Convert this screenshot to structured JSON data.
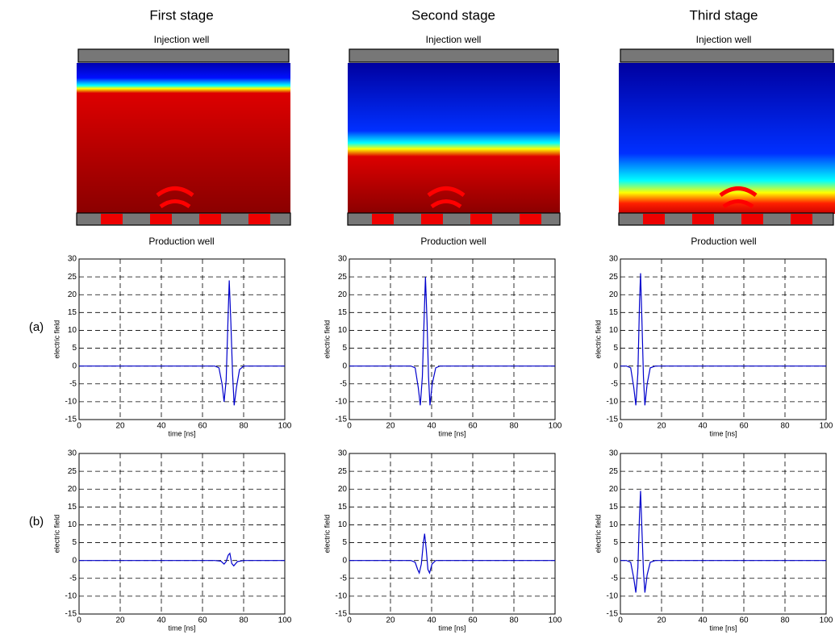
{
  "stages": [
    {
      "title": "First stage",
      "top_label": "Injection well",
      "bottom_label": "Production well"
    },
    {
      "title": "Second stage",
      "top_label": "Injection well",
      "bottom_label": "Production well"
    },
    {
      "title": "Third stage",
      "top_label": "Injection well",
      "bottom_label": "Production well"
    }
  ],
  "rows": [
    "(a)",
    "(b)"
  ],
  "chart_data": [
    {
      "type": "line",
      "xlabel": "time [ns]",
      "ylabel": "electric field",
      "color": "#0000cc",
      "grid": true,
      "xlim": [
        0,
        100
      ],
      "xticks": [
        0,
        20,
        40,
        60,
        80,
        100
      ],
      "ylim": [
        -15,
        30
      ],
      "yticks": [
        -15,
        -10,
        -5,
        0,
        5,
        10,
        15,
        20,
        25,
        30
      ],
      "x": [
        0,
        66,
        68,
        69.5,
        70.5,
        71.5,
        72.5,
        73,
        73.8,
        74.6,
        75.4,
        76.5,
        78,
        80,
        100
      ],
      "values": [
        0,
        0,
        -0.5,
        -5,
        -10,
        -4,
        15,
        24,
        12,
        -2,
        -11,
        -6,
        -1,
        0,
        0
      ]
    },
    {
      "type": "line",
      "xlabel": "time [ns]",
      "ylabel": "electric field",
      "color": "#0000cc",
      "grid": true,
      "xlim": [
        0,
        100
      ],
      "xticks": [
        0,
        20,
        40,
        60,
        80,
        100
      ],
      "ylim": [
        -15,
        30
      ],
      "yticks": [
        -15,
        -10,
        -5,
        0,
        5,
        10,
        15,
        20,
        25,
        30
      ],
      "x": [
        0,
        30,
        32,
        33.5,
        34.5,
        35.5,
        36.5,
        37,
        37.8,
        38.5,
        39.2,
        40.3,
        42,
        44,
        100
      ],
      "values": [
        0,
        0,
        -0.5,
        -6,
        -11,
        -3,
        16,
        25,
        12,
        -3,
        -11,
        -5,
        -0.5,
        0,
        0
      ]
    },
    {
      "type": "line",
      "xlabel": "time [ns]",
      "ylabel": "electric field",
      "color": "#0000cc",
      "grid": true,
      "xlim": [
        0,
        100
      ],
      "xticks": [
        0,
        20,
        40,
        60,
        80,
        100
      ],
      "ylim": [
        -15,
        30
      ],
      "yticks": [
        -15,
        -10,
        -5,
        0,
        5,
        10,
        15,
        20,
        25,
        30
      ],
      "x": [
        0,
        3,
        5,
        6.5,
        7.5,
        8.5,
        9.3,
        9.8,
        10.5,
        11.2,
        11.9,
        13,
        14.5,
        17,
        100
      ],
      "values": [
        0,
        0,
        -0.5,
        -6,
        -11,
        -2,
        18,
        26,
        12,
        -3,
        -11,
        -5,
        -0.5,
        0,
        0
      ]
    },
    {
      "type": "line",
      "xlabel": "time [ns]",
      "ylabel": "electric field",
      "color": "#0000cc",
      "grid": true,
      "xlim": [
        0,
        100
      ],
      "xticks": [
        0,
        20,
        40,
        60,
        80,
        100
      ],
      "ylim": [
        -15,
        30
      ],
      "yticks": [
        -15,
        -10,
        -5,
        0,
        5,
        10,
        15,
        20,
        25,
        30
      ],
      "x": [
        0,
        66,
        69,
        70.5,
        71.5,
        72.5,
        73.3,
        74.2,
        75.2,
        77,
        80,
        100
      ],
      "values": [
        0,
        0,
        -0.2,
        -1,
        -0.3,
        1.5,
        2,
        -0.8,
        -1.5,
        -0.3,
        0,
        0
      ]
    },
    {
      "type": "line",
      "xlabel": "time [ns]",
      "ylabel": "electric field",
      "color": "#0000cc",
      "grid": true,
      "xlim": [
        0,
        100
      ],
      "xticks": [
        0,
        20,
        40,
        60,
        80,
        100
      ],
      "ylim": [
        -15,
        30
      ],
      "yticks": [
        -15,
        -10,
        -5,
        0,
        5,
        10,
        15,
        20,
        25,
        30
      ],
      "x": [
        0,
        30,
        32,
        33.2,
        34,
        35,
        36,
        36.6,
        37.4,
        38.2,
        39,
        40.2,
        42,
        100
      ],
      "values": [
        0,
        0,
        -0.5,
        -2.5,
        -3.5,
        -1,
        5,
        7.5,
        3,
        -2.5,
        -3.5,
        -1,
        0,
        0
      ]
    },
    {
      "type": "line",
      "xlabel": "time [ns]",
      "ylabel": "electric field",
      "color": "#0000cc",
      "grid": true,
      "xlim": [
        0,
        100
      ],
      "xticks": [
        0,
        20,
        40,
        60,
        80,
        100
      ],
      "ylim": [
        -15,
        30
      ],
      "yticks": [
        -15,
        -10,
        -5,
        0,
        5,
        10,
        15,
        20,
        25,
        30
      ],
      "x": [
        0,
        3,
        5,
        6.5,
        7.5,
        8.5,
        9.3,
        9.8,
        10.5,
        11.2,
        11.9,
        13,
        14.5,
        17,
        100
      ],
      "values": [
        0,
        0,
        -0.5,
        -5,
        -9,
        -2,
        13,
        19.5,
        8,
        -3,
        -9,
        -4,
        -0.5,
        0,
        0
      ]
    }
  ]
}
